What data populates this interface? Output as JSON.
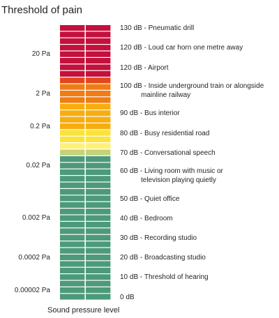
{
  "title": "Threshold of pain",
  "xlabel": "Sound pressure level",
  "pressure_labels": [
    {
      "text": "20 Pa",
      "row": 4.5
    },
    {
      "text": "2 Pa",
      "row": 10.5
    },
    {
      "text": "0.2 Pa",
      "row": 15.5
    },
    {
      "text": "0.02 Pa",
      "row": 21.5
    },
    {
      "text": "0.002 Pa",
      "row": 29.5
    },
    {
      "text": "0.0002 Pa",
      "row": 35.5
    },
    {
      "text": "0.00002 Pa",
      "row": 40.5
    }
  ],
  "db_labels": [
    {
      "lines": [
        "130 dB - Pneumatic drill"
      ],
      "row": 0.5
    },
    {
      "lines": [
        "120 dB - Loud car horn one metre away"
      ],
      "row": 3.5
    },
    {
      "lines": [
        "120 dB - Airport"
      ],
      "row": 6.5
    },
    {
      "lines": [
        "100 dB - Inside underground train or alongside",
        "mainline railway"
      ],
      "row": 10.0
    },
    {
      "lines": [
        "90 dB - Bus interior"
      ],
      "row": 13.5
    },
    {
      "lines": [
        "80 dB - Busy residential road"
      ],
      "row": 16.5
    },
    {
      "lines": [
        "70 dB - Conversational speech"
      ],
      "row": 19.5
    },
    {
      "lines": [
        "60 dB - Living room with music or",
        "television playing quietly"
      ],
      "row": 23.0
    },
    {
      "lines": [
        "50 dB - Quiet office"
      ],
      "row": 26.5
    },
    {
      "lines": [
        "40 dB - Bedroom"
      ],
      "row": 29.5
    },
    {
      "lines": [
        "30 dB - Recording studio"
      ],
      "row": 32.5
    },
    {
      "lines": [
        "20 dB - Broadcasting studio"
      ],
      "row": 35.5
    },
    {
      "lines": [
        "10 dB - Threshold of hearing"
      ],
      "row": 38.5
    },
    {
      "lines": [
        "0 dB"
      ],
      "row": 41.5
    }
  ],
  "meter": {
    "rows": 42,
    "bands": [
      {
        "name": "red",
        "color": "#c4103c",
        "count": 8
      },
      {
        "name": "red-orange",
        "color": "#e3471e",
        "count": 1
      },
      {
        "name": "orange",
        "color": "#ef7d14",
        "count": 3
      },
      {
        "name": "amber",
        "color": "#f7ad12",
        "count": 4
      },
      {
        "name": "yellow",
        "color": "#fbe33b",
        "count": 2
      },
      {
        "name": "light-yellow",
        "color": "#fdf17c",
        "count": 1
      },
      {
        "name": "yellow-green",
        "color": "#c5d27a",
        "count": 1
      },
      {
        "name": "green",
        "color": "#4d9a7b",
        "count": 22
      }
    ]
  }
}
